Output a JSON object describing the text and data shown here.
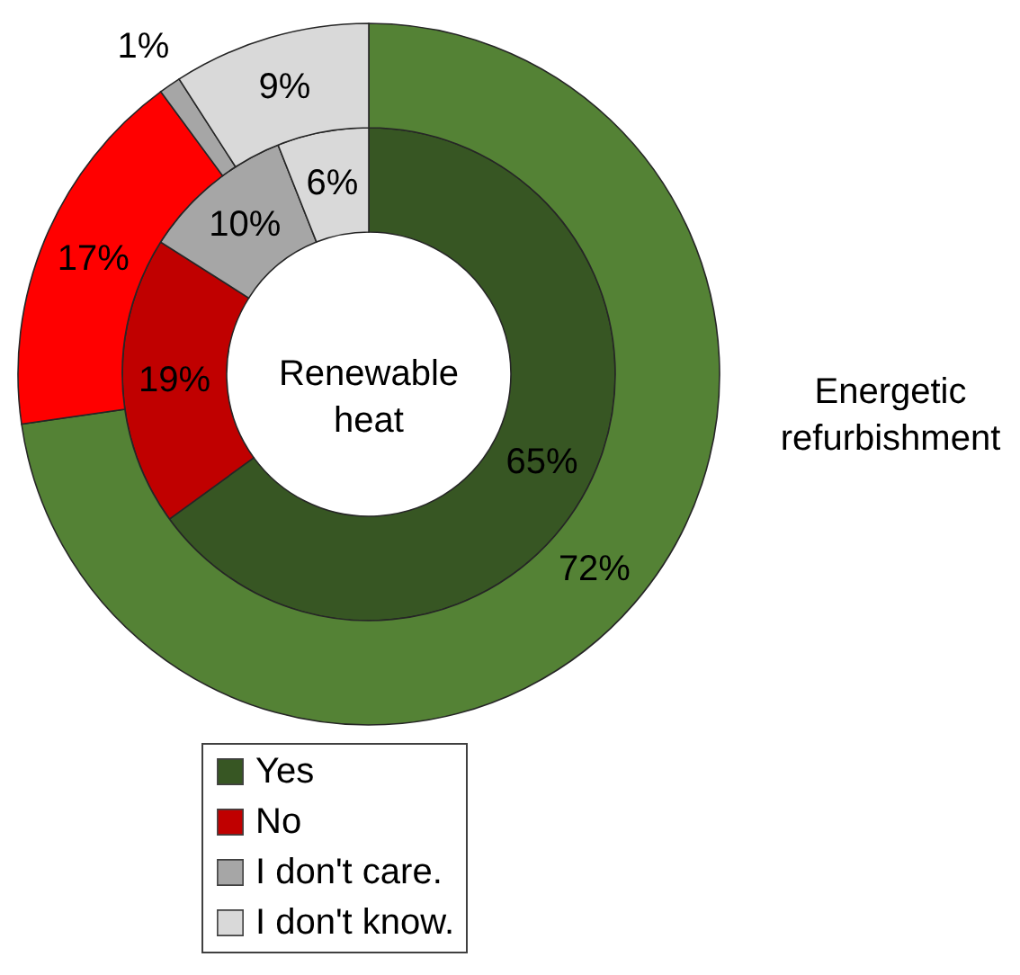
{
  "chart_data": {
    "type": "donut",
    "categories": [
      "Yes",
      "No",
      "I don't care.",
      "I don't know."
    ],
    "series": [
      {
        "name": "Renewable heat",
        "values": [
          65,
          19,
          10,
          6
        ],
        "colors": [
          "#375623",
          "#c00000",
          "#a6a6a6",
          "#d9d9d9"
        ],
        "value_labels": [
          "65%",
          "19%",
          "10%",
          "6%"
        ]
      },
      {
        "name": "Energetic refurbishment",
        "values": [
          72,
          17,
          1,
          9
        ],
        "colors": [
          "#548235",
          "#ff0000",
          "#a6a6a6",
          "#d9d9d9"
        ],
        "value_labels": [
          "72%",
          "17%",
          "1%",
          "9%"
        ]
      }
    ],
    "legend": "bottom"
  }
}
